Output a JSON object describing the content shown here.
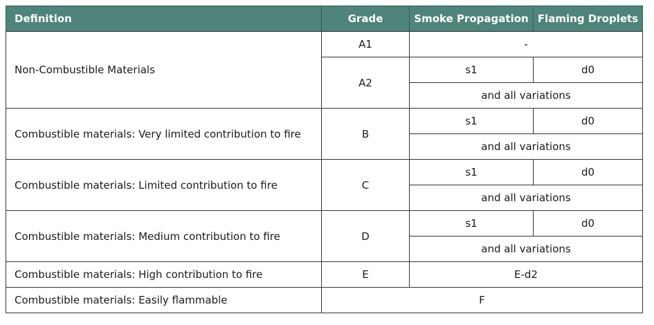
{
  "header": {
    "definition": "Definition",
    "grade": "Grade",
    "smoke": "Smoke Propagation",
    "droplets": "Flaming Droplets"
  },
  "colors": {
    "header_bg": "#4e8479",
    "header_text": "#ffffff"
  },
  "rows": [
    {
      "definition": "Non-Combustible Materials",
      "grades": [
        {
          "grade": "A1",
          "value": "-"
        },
        {
          "grade": "A2",
          "smoke": "s1",
          "droplets": "d0",
          "variations": "and all variations"
        }
      ]
    },
    {
      "definition": "Combustible materials: Very limited contribution to fire",
      "grade": "B",
      "smoke": "s1",
      "droplets": "d0",
      "variations": "and all variations"
    },
    {
      "definition": "Combustible materials: Limited contribution to fire",
      "grade": "C",
      "smoke": "s1",
      "droplets": "d0",
      "variations": "and all variations"
    },
    {
      "definition": "Combustible materials: Medium contribution to fire",
      "grade": "D",
      "smoke": "s1",
      "droplets": "d0",
      "variations": "and all variations"
    },
    {
      "definition": "Combustible materials: High contribution to fire",
      "grade": "E",
      "value": "E-d2"
    },
    {
      "definition": "Combustible materials: Easily flammable",
      "value": "F"
    }
  ]
}
